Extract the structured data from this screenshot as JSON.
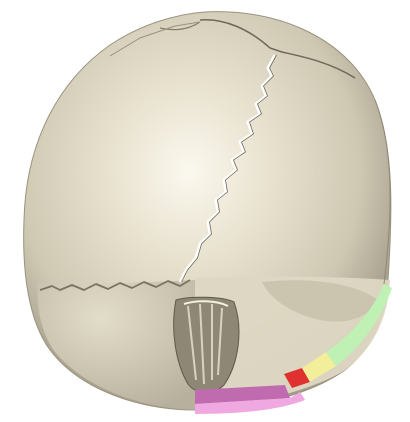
{
  "scene": {
    "subject": "skull-3d-render",
    "view": "posterior-superior",
    "colors": {
      "background": "#ffffff",
      "bone_light": "#f3efe0",
      "bone_mid": "#dcd6c2",
      "bone_shadow": "#a7a08e",
      "suture": "#ffffff",
      "segment_purple": "#c06ab0",
      "segment_pink": "#f0a8e0",
      "segment_red": "#e03030",
      "segment_yellow": "#f2ee9a",
      "segment_green": "#bff0b4"
    }
  }
}
